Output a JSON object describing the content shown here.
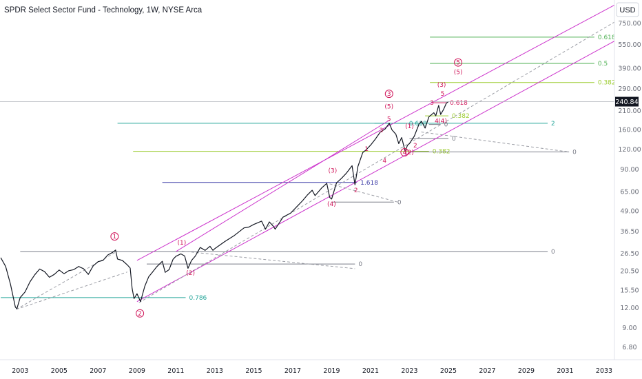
{
  "header": {
    "title": "SPDR Select Sector Fund - Technology, 1W, NYSE Arca",
    "currency": "USD"
  },
  "colors": {
    "price": "#131722",
    "channel": "#cc33cc",
    "wave": "#d0165a",
    "fib_green": "#4caf50",
    "fib_lime": "#9ccc2f",
    "fib_teal": "#26a69a",
    "fib_navy": "#3f3fa8",
    "gray": "#787b86"
  },
  "chart_data": {
    "type": "line",
    "title": "SPDR Select Sector Fund - Technology, 1W, NYSE Arca",
    "xlabel": "",
    "ylabel": "",
    "y_scale": "log",
    "ylim": [
      5.6,
      1000
    ],
    "xlim": [
      2002.0,
      2033.8
    ],
    "x_ticks": [
      "2003",
      "2005",
      "2007",
      "2009",
      "2011",
      "2013",
      "2015",
      "2017",
      "2019",
      "2021",
      "2023",
      "2025",
      "2027",
      "2029",
      "2031",
      "2033"
    ],
    "y_ticks": [
      "6.80",
      "9.00",
      "12.00",
      "15.50",
      "20.50",
      "26.50",
      "36.50",
      "49.00",
      "65.00",
      "90.00",
      "120.00",
      "160.00",
      "210.00",
      "290.00",
      "390.00",
      "550.00",
      "750.00"
    ],
    "last_price": "240.84",
    "grid": false,
    "series": [
      {
        "values": [
          [
            2002.0,
            25.0
          ],
          [
            2002.25,
            22.0
          ],
          [
            2002.5,
            17.0
          ],
          [
            2002.75,
            12.2
          ],
          [
            2002.83,
            11.9
          ],
          [
            2003.0,
            14.0
          ],
          [
            2003.25,
            15.2
          ],
          [
            2003.5,
            17.6
          ],
          [
            2003.75,
            19.5
          ],
          [
            2004.0,
            21.2
          ],
          [
            2004.25,
            20.4
          ],
          [
            2004.5,
            18.8
          ],
          [
            2004.75,
            19.6
          ],
          [
            2005.0,
            20.9
          ],
          [
            2005.25,
            19.8
          ],
          [
            2005.5,
            20.7
          ],
          [
            2005.75,
            21.0
          ],
          [
            2006.0,
            22.0
          ],
          [
            2006.25,
            21.3
          ],
          [
            2006.5,
            19.6
          ],
          [
            2006.75,
            22.2
          ],
          [
            2007.0,
            23.6
          ],
          [
            2007.25,
            24.0
          ],
          [
            2007.5,
            26.0
          ],
          [
            2007.75,
            27.0
          ],
          [
            2007.9,
            27.9
          ],
          [
            2008.0,
            24.5
          ],
          [
            2008.25,
            24.0
          ],
          [
            2008.5,
            22.5
          ],
          [
            2008.65,
            21.5
          ],
          [
            2008.75,
            16.0
          ],
          [
            2008.85,
            13.8
          ],
          [
            2009.0,
            14.8
          ],
          [
            2009.18,
            13.2
          ],
          [
            2009.4,
            16.5
          ],
          [
            2009.6,
            18.9
          ],
          [
            2009.8,
            20.3
          ],
          [
            2010.0,
            21.8
          ],
          [
            2010.3,
            23.7
          ],
          [
            2010.45,
            20.2
          ],
          [
            2010.65,
            21.0
          ],
          [
            2010.85,
            24.4
          ],
          [
            2011.0,
            25.5
          ],
          [
            2011.25,
            26.4
          ],
          [
            2011.45,
            25.6
          ],
          [
            2011.62,
            21.4
          ],
          [
            2011.8,
            24.0
          ],
          [
            2012.0,
            25.6
          ],
          [
            2012.25,
            29.0
          ],
          [
            2012.5,
            27.8
          ],
          [
            2012.75,
            29.5
          ],
          [
            2012.9,
            27.8
          ],
          [
            2013.0,
            28.5
          ],
          [
            2013.5,
            31.5
          ],
          [
            2014.0,
            34.5
          ],
          [
            2014.5,
            38.5
          ],
          [
            2014.75,
            39.0
          ],
          [
            2015.0,
            40.5
          ],
          [
            2015.4,
            42.5
          ],
          [
            2015.6,
            37.8
          ],
          [
            2015.8,
            42.0
          ],
          [
            2016.0,
            39.5
          ],
          [
            2016.1,
            37.8
          ],
          [
            2016.5,
            45.0
          ],
          [
            2016.9,
            47.8
          ],
          [
            2017.25,
            53.0
          ],
          [
            2017.5,
            57.0
          ],
          [
            2017.75,
            62.0
          ],
          [
            2018.0,
            66.5
          ],
          [
            2018.15,
            61.5
          ],
          [
            2018.5,
            69.0
          ],
          [
            2018.75,
            73.5
          ],
          [
            2018.9,
            60.0
          ],
          [
            2019.0,
            58.5
          ],
          [
            2019.25,
            74.0
          ],
          [
            2019.5,
            79.0
          ],
          [
            2019.75,
            85.0
          ],
          [
            2020.05,
            95.0
          ],
          [
            2020.2,
            72.0
          ],
          [
            2020.35,
            94.0
          ],
          [
            2020.6,
            115.0
          ],
          [
            2020.75,
            119.0
          ],
          [
            2021.0,
            128.0
          ],
          [
            2021.25,
            140.0
          ],
          [
            2021.5,
            155.0
          ],
          [
            2021.75,
            162.0
          ],
          [
            2021.96,
            176.0
          ],
          [
            2022.1,
            160.0
          ],
          [
            2022.3,
            150.0
          ],
          [
            2022.45,
            131.0
          ],
          [
            2022.6,
            143.0
          ],
          [
            2022.78,
            117.0
          ],
          [
            2022.9,
            128.0
          ],
          [
            2023.0,
            131.0
          ],
          [
            2023.25,
            146.0
          ],
          [
            2023.5,
            175.0
          ],
          [
            2023.62,
            181.0
          ],
          [
            2023.8,
            164.0
          ],
          [
            2024.0,
            193.0
          ],
          [
            2024.25,
            205.0
          ],
          [
            2024.35,
            196.0
          ],
          [
            2024.5,
            228.0
          ],
          [
            2024.6,
            200.0
          ],
          [
            2024.75,
            215.0
          ],
          [
            2024.9,
            236.0
          ],
          [
            2025.0,
            240.84
          ]
        ]
      }
    ],
    "annotations": {
      "waves": [
        {
          "label": "1",
          "circled": true,
          "x": 2007.85,
          "y": 33.0
        },
        {
          "label": "2",
          "circled": true,
          "x": 2009.15,
          "y": 10.8
        },
        {
          "label": "(1)",
          "x": 2011.3,
          "y": 30.2
        },
        {
          "label": "(2)",
          "x": 2011.75,
          "y": 19.4
        },
        {
          "label": "3",
          "circled": true,
          "x": 2021.95,
          "y": 262.0
        },
        {
          "label": "(3)",
          "x": 2019.05,
          "y": 86.0
        },
        {
          "label": "(4)",
          "x": 2019.0,
          "y": 53.0
        },
        {
          "label": "(5)",
          "x": 2021.95,
          "y": 218.0
        },
        {
          "label": "5",
          "x": 2021.95,
          "y": 182.0
        },
        {
          "label": "1",
          "x": 2020.8,
          "y": 117.5
        },
        {
          "label": "2",
          "x": 2020.25,
          "y": 64.5
        },
        {
          "label": "3",
          "x": 2021.55,
          "y": 154.5
        },
        {
          "label": "4",
          "x": 2021.72,
          "y": 99.5
        },
        {
          "label": "(1)",
          "x": 2023.0,
          "y": 164.0
        },
        {
          "label": "(2)",
          "x": 2023.0,
          "y": 112.0
        },
        {
          "label": "4",
          "circled": true,
          "x": 2022.75,
          "y": 112.0
        },
        {
          "label": "2",
          "x": 2023.3,
          "y": 124.0
        },
        {
          "label": "3",
          "x": 2024.15,
          "y": 230.0
        },
        {
          "label": "(3)",
          "x": 2024.65,
          "y": 298.0
        },
        {
          "label": "5",
          "x": 2024.7,
          "y": 262.0
        },
        {
          "label": "4",
          "x": 2024.4,
          "y": 177.0
        },
        {
          "label": "(4)",
          "x": 2024.7,
          "y": 177.0
        },
        {
          "label": "5",
          "circled": true,
          "x": 2025.5,
          "y": 413.0
        },
        {
          "label": "(5)",
          "x": 2025.5,
          "y": 360.0
        }
      ],
      "levels": [
        {
          "label": "0.618",
          "y": 615.0,
          "x1": 2024.05,
          "x2": 2032.5,
          "color": "fib_green"
        },
        {
          "label": "0.5",
          "y": 420.0,
          "x1": 2024.05,
          "x2": 2032.5,
          "color": "fib_green"
        },
        {
          "label": "0.382",
          "y": 318.0,
          "x1": 2024.05,
          "x2": 2032.5,
          "color": "fib_lime"
        },
        {
          "label": "2",
          "y": 176.0,
          "x1": 2008.0,
          "x2": 2030.1,
          "color": "fib_teal"
        },
        {
          "label": "0.382",
          "y": 117.0,
          "x1": 2008.8,
          "x2": 2024.0,
          "color": "fib_lime"
        },
        {
          "label": "0",
          "y": 116.0,
          "x1": 2023.0,
          "x2": 2031.2,
          "color": "gray"
        },
        {
          "label": "0",
          "y": 141.0,
          "x1": 2023.0,
          "x2": 2025.0,
          "color": "gray"
        },
        {
          "label": "0.382",
          "y": 196.0,
          "x1": 2023.8,
          "x2": 2025.0,
          "color": "fib_lime"
        },
        {
          "label": "0.618",
          "y": 176.0,
          "x1": 2021.2,
          "x2": 2022.8,
          "color": "fib_teal"
        },
        {
          "label": "0",
          "y": 173.0,
          "x1": 2024.0,
          "x2": 2024.6,
          "color": "gray"
        },
        {
          "label": "0.618",
          "y": 237.0,
          "x1": 2024.2,
          "x2": 2024.9,
          "color": "wave"
        },
        {
          "label": "1.618",
          "y": 74.5,
          "x1": 2010.3,
          "x2": 2020.3,
          "color": "fib_navy"
        },
        {
          "label": "0",
          "y": 56.0,
          "x1": 2019.0,
          "x2": 2022.2,
          "color": "gray"
        },
        {
          "label": "0",
          "y": 27.3,
          "x1": 2003.0,
          "x2": 2030.1,
          "color": "gray"
        },
        {
          "label": "0",
          "y": 22.8,
          "x1": 2009.5,
          "x2": 2020.2,
          "color": "gray"
        },
        {
          "label": "0.786",
          "y": 14.0,
          "x1": 2002.0,
          "x2": 2011.5,
          "color": "fib_teal"
        }
      ],
      "channels": [
        {
          "kind": "solid",
          "x1": 2009.0,
          "y1": 24.0,
          "x2": 2033.8,
          "y2": 1020.0
        },
        {
          "kind": "solid",
          "x1": 2009.0,
          "y1": 13.2,
          "x2": 2033.8,
          "y2": 605.0
        },
        {
          "kind": "solid",
          "x1": 2011.0,
          "y1": 27.3,
          "x2": 2022.0,
          "y2": 185.0
        },
        {
          "kind": "dashed",
          "x1": 2002.8,
          "y1": 11.8,
          "x2": 2008.0,
          "y2": 27.5
        },
        {
          "kind": "dashed",
          "x1": 2002.8,
          "y1": 11.8,
          "x2": 2008.5,
          "y2": 20.3
        },
        {
          "kind": "dashed",
          "x1": 2009.1,
          "y1": 13.0,
          "x2": 2033.8,
          "y2": 800.0
        },
        {
          "kind": "dashed",
          "x1": 2011.3,
          "y1": 27.5,
          "x2": 2020.2,
          "y2": 21.3
        },
        {
          "kind": "dashed",
          "x1": 2018.9,
          "y1": 73.0,
          "x2": 2022.4,
          "y2": 56.0
        },
        {
          "kind": "dashed",
          "x1": 2023.6,
          "y1": 155.0,
          "x2": 2031.2,
          "y2": 116.0
        }
      ]
    }
  }
}
